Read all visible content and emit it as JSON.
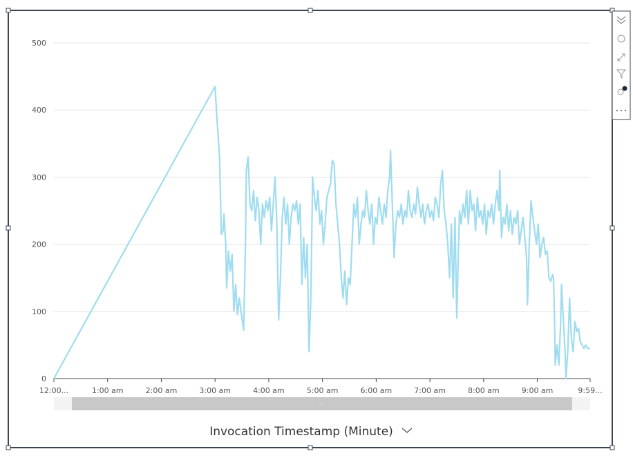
{
  "chart_data": {
    "type": "line",
    "x_label": "Invocation Timestamp (Minute)",
    "color": "#9fdcf0",
    "x": [
      0,
      180,
      182,
      185,
      187,
      189,
      190,
      192,
      193,
      195,
      197,
      199,
      201,
      203,
      205,
      207,
      209,
      212,
      214,
      215,
      217,
      219,
      221,
      223,
      225,
      227,
      229,
      231,
      233,
      235,
      237,
      239,
      241,
      243,
      245,
      247,
      249,
      251,
      253,
      255,
      257,
      259,
      261,
      263,
      265,
      267,
      269,
      271,
      273,
      275,
      277,
      279,
      281,
      283,
      285,
      287,
      289,
      291,
      293,
      295,
      297,
      299,
      301,
      303,
      305,
      307,
      309,
      311,
      313,
      315,
      317,
      319,
      321,
      323,
      325,
      327,
      329,
      331,
      333,
      335,
      337,
      339,
      341,
      343,
      345,
      347,
      349,
      351,
      353,
      355,
      357,
      359,
      361,
      363,
      365,
      367,
      369,
      371,
      373,
      375,
      376,
      378,
      380,
      382,
      384,
      386,
      388,
      390,
      392,
      394,
      396,
      398,
      400,
      402,
      404,
      406,
      408,
      410,
      412,
      414,
      416,
      418,
      420,
      422,
      424,
      426,
      428,
      430,
      432,
      434,
      436,
      438,
      440,
      442,
      444,
      446,
      448,
      450,
      452,
      453,
      455,
      457,
      459,
      461,
      463,
      465,
      467,
      469,
      471,
      473,
      475,
      477,
      479,
      481,
      483,
      485,
      487,
      489,
      491,
      493,
      495,
      497,
      498,
      500,
      502,
      504,
      506,
      508,
      510,
      512,
      514,
      516,
      518,
      520,
      522,
      524,
      526,
      528,
      529,
      531,
      533,
      535,
      537,
      539,
      541,
      543,
      545,
      547,
      549,
      551,
      553,
      555,
      557,
      558,
      559,
      560,
      562,
      564,
      566,
      567,
      569,
      571,
      572,
      574,
      576,
      578,
      580,
      582,
      584,
      586,
      588,
      590,
      592,
      594,
      596,
      599
    ],
    "values": [
      0,
      435,
      390,
      330,
      215,
      220,
      245,
      200,
      135,
      190,
      160,
      185,
      100,
      140,
      95,
      120,
      100,
      72,
      200,
      310,
      330,
      260,
      250,
      280,
      235,
      270,
      250,
      200,
      260,
      240,
      265,
      250,
      270,
      220,
      260,
      300,
      230,
      87,
      150,
      240,
      270,
      230,
      260,
      200,
      240,
      260,
      250,
      265,
      230,
      260,
      140,
      210,
      150,
      200,
      40,
      120,
      300,
      270,
      250,
      280,
      230,
      250,
      200,
      230,
      270,
      280,
      290,
      325,
      320,
      260,
      230,
      200,
      150,
      120,
      160,
      110,
      150,
      140,
      200,
      260,
      240,
      270,
      200,
      230,
      250,
      240,
      280,
      250,
      230,
      260,
      200,
      240,
      230,
      270,
      250,
      230,
      260,
      240,
      280,
      300,
      340,
      260,
      180,
      230,
      250,
      240,
      260,
      230,
      250,
      240,
      280,
      250,
      240,
      260,
      245,
      285,
      260,
      240,
      260,
      230,
      250,
      260,
      240,
      250,
      235,
      270,
      260,
      240,
      290,
      310,
      250,
      230,
      200,
      150,
      230,
      120,
      240,
      90,
      200,
      250,
      230,
      260,
      240,
      280,
      230,
      280,
      250,
      260,
      220,
      270,
      240,
      250,
      230,
      260,
      215,
      250,
      240,
      260,
      230,
      260,
      280,
      250,
      310,
      210,
      240,
      230,
      260,
      220,
      250,
      215,
      240,
      230,
      250,
      200,
      220,
      240,
      210,
      180,
      110,
      200,
      265,
      240,
      220,
      200,
      230,
      180,
      200,
      210,
      185,
      190,
      150,
      145,
      155,
      150,
      100,
      20,
      50,
      20,
      80,
      140,
      90,
      40,
      0,
      40,
      120,
      60,
      40,
      85,
      70,
      75,
      55,
      50,
      45,
      50,
      45,
      45
    ],
    "xlim": [
      0,
      599
    ],
    "ylim": [
      0,
      500
    ],
    "yticks": [
      0,
      100,
      200,
      300,
      400,
      500
    ],
    "grid": true,
    "xticks": [
      {
        "value": 0,
        "label": "12:00..."
      },
      {
        "value": 60,
        "label": "1:00 am"
      },
      {
        "value": 120,
        "label": "2:00 am"
      },
      {
        "value": 180,
        "label": "3:00 am"
      },
      {
        "value": 240,
        "label": "4:00 am"
      },
      {
        "value": 300,
        "label": "5:00 am"
      },
      {
        "value": 360,
        "label": "6:00 am"
      },
      {
        "value": 420,
        "label": "7:00 am"
      },
      {
        "value": 480,
        "label": "8:00 am"
      },
      {
        "value": 540,
        "label": "9:00 am"
      },
      {
        "value": 599,
        "label": "9:59..."
      }
    ]
  }
}
